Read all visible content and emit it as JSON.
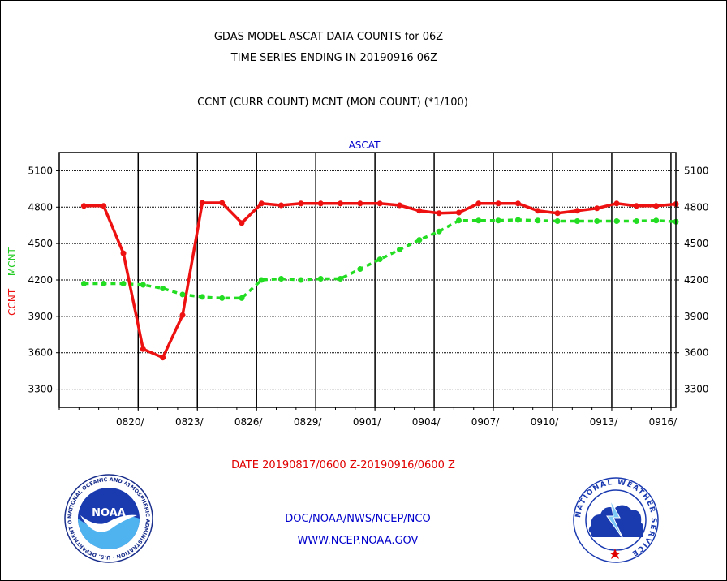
{
  "header": {
    "title_line1": "GDAS MODEL ASCAT DATA COUNTS for 06Z",
    "title_line2": "TIME SERIES ENDING IN 20190916 06Z",
    "subtitle": "CCNT (CURR COUNT) MCNT (MON COUNT) (*1/100)"
  },
  "footer": {
    "date_range": "DATE 20190817/0600 Z-20190916/0600 Z",
    "org": "DOC/NOAA/NWS/NCEP/NCO",
    "url": "WWW.NCEP.NOAA.GOV"
  },
  "colors": {
    "ccnt": "#ee1111",
    "mcnt": "#22dd22",
    "title_blue": "#0000cc",
    "date_red": "#e00000"
  },
  "logos": {
    "noaa_text": "NOAA",
    "noaa_ring": "NATIONAL OCEANIC AND ATMOSPHERIC ADMINISTRATION · U.S. DEPARTMENT OF COMMERCE ·",
    "nws_ring": "NATIONAL WEATHER SERVICE"
  },
  "chart_data": {
    "type": "line",
    "title": "ASCAT",
    "ylabel_parts": [
      "CCNT",
      "MCNT"
    ],
    "x_ticks": [
      "0820/",
      "0823/",
      "0826/",
      "0829/",
      "0901/",
      "0904/",
      "0907/",
      "0910/",
      "0913/",
      "0916/"
    ],
    "ylim": [
      3150,
      5250
    ],
    "y_ticks": [
      3300,
      3600,
      3900,
      4200,
      4500,
      4800,
      5100
    ],
    "grid": true,
    "x_range": [
      "20190816/0000",
      "20190916/0600"
    ],
    "series": [
      {
        "name": "CCNT",
        "color": "#ee1111",
        "style": "solid",
        "x": [
          "20190817/0600",
          "20190818/0600",
          "20190819/0600",
          "20190820/0600",
          "20190821/0600",
          "20190822/0600",
          "20190823/0600",
          "20190824/0600",
          "20190825/0600",
          "20190826/0600",
          "20190827/0600",
          "20190828/0600",
          "20190829/0600",
          "20190830/0600",
          "20190831/0600",
          "20190901/0600",
          "20190902/0600",
          "20190903/0600",
          "20190904/0600",
          "20190905/0600",
          "20190906/0600",
          "20190907/0600",
          "20190908/0600",
          "20190909/0600",
          "20190910/0600",
          "20190911/0600",
          "20190912/0600",
          "20190913/0600",
          "20190914/0600",
          "20190915/0600",
          "20190916/0600"
        ],
        "values": [
          4810,
          4810,
          4420,
          3630,
          3560,
          3910,
          4835,
          4835,
          4670,
          4830,
          4815,
          4830,
          4830,
          4830,
          4830,
          4830,
          4815,
          4770,
          4750,
          4755,
          4830,
          4830,
          4830,
          4770,
          4750,
          4770,
          4790,
          4830,
          4810,
          4810,
          4825
        ]
      },
      {
        "name": "MCNT",
        "color": "#22dd22",
        "style": "dashed",
        "x": [
          "20190817/0600",
          "20190818/0600",
          "20190819/0600",
          "20190820/0600",
          "20190821/0600",
          "20190822/0600",
          "20190823/0600",
          "20190824/0600",
          "20190825/0600",
          "20190826/0600",
          "20190827/0600",
          "20190828/0600",
          "20190829/0600",
          "20190830/0600",
          "20190831/0600",
          "20190901/0600",
          "20190902/0600",
          "20190903/0600",
          "20190904/0600",
          "20190905/0600",
          "20190906/0600",
          "20190907/0600",
          "20190908/0600",
          "20190909/0600",
          "20190910/0600",
          "20190911/0600",
          "20190912/0600",
          "20190913/0600",
          "20190914/0600",
          "20190915/0600",
          "20190916/0600"
        ],
        "values": [
          4170,
          4170,
          4170,
          4160,
          4130,
          4080,
          4060,
          4050,
          4050,
          4200,
          4210,
          4200,
          4210,
          4210,
          4290,
          4370,
          4450,
          4530,
          4600,
          4690,
          4690,
          4690,
          4695,
          4690,
          4685,
          4685,
          4685,
          4685,
          4685,
          4690,
          4680
        ]
      }
    ]
  }
}
